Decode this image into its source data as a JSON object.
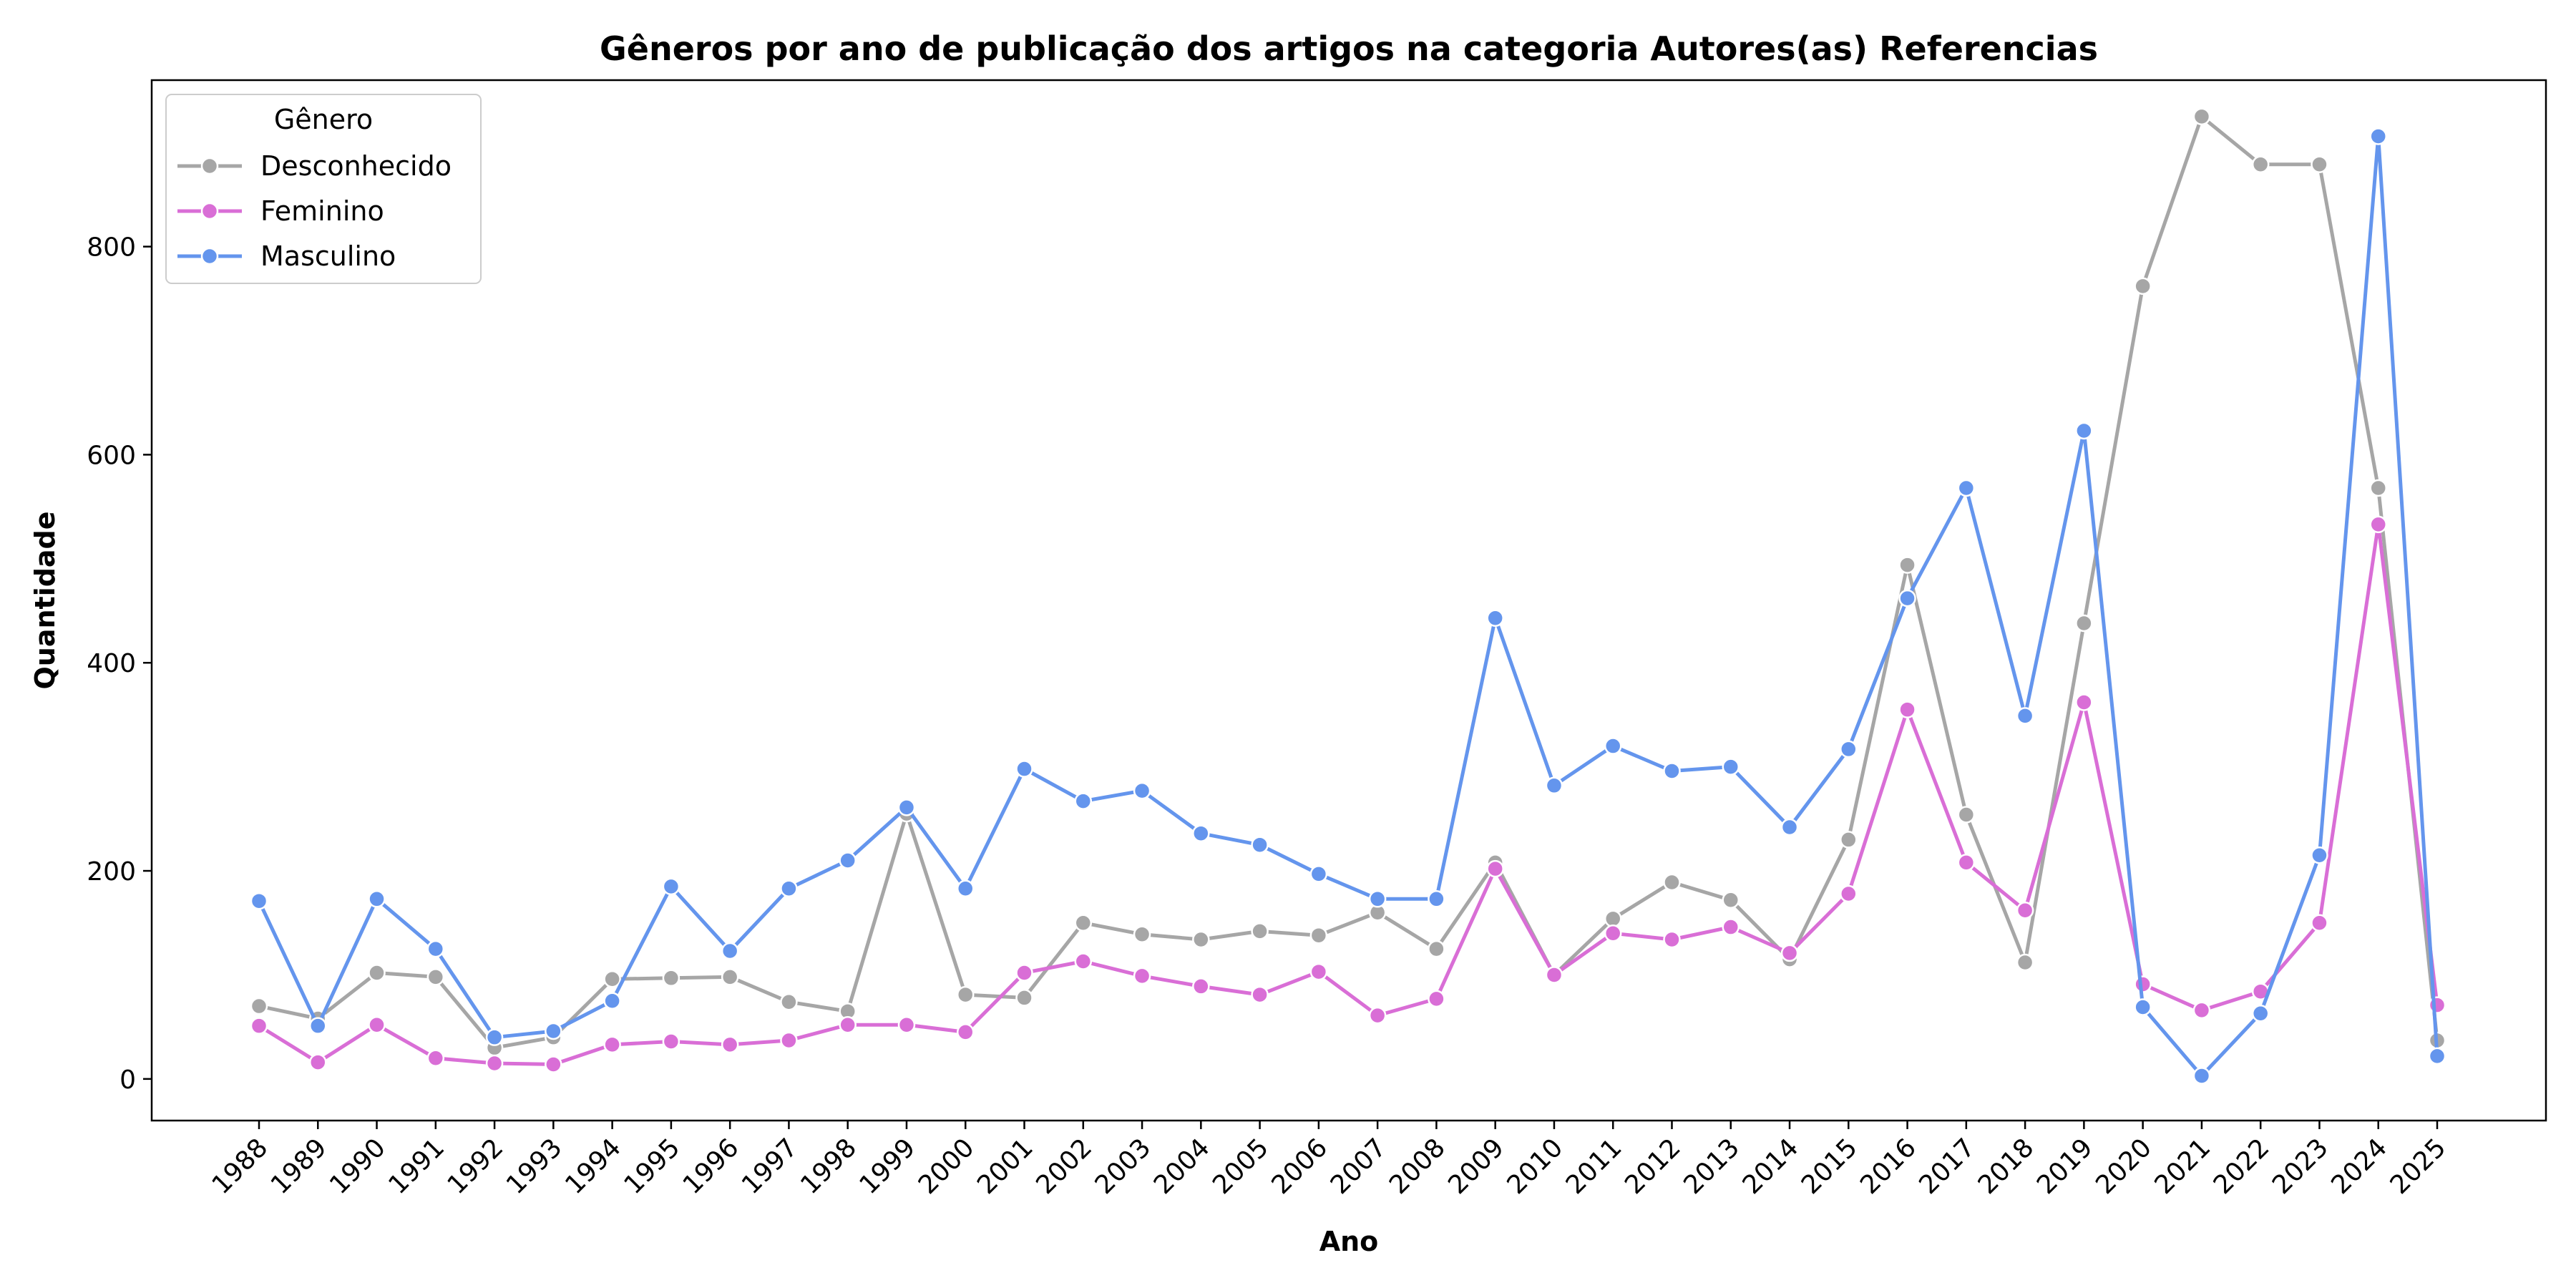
{
  "chart_data": {
    "type": "line",
    "title": "Gêneros por ano de publicação dos artigos na categoria Autores(as) Referencias",
    "xlabel": "Ano",
    "ylabel": "Quantidade",
    "ylim": [
      -40,
      960
    ],
    "yticks": [
      0,
      200,
      400,
      600,
      800
    ],
    "grid": false,
    "legend": {
      "title": "Gênero",
      "placement": "top-left"
    },
    "x": [
      "1988",
      "1989",
      "1990",
      "1991",
      "1992",
      "1993",
      "1994",
      "1995",
      "1996",
      "1997",
      "1998",
      "1999",
      "2000",
      "2001",
      "2002",
      "2003",
      "2004",
      "2005",
      "2006",
      "2007",
      "2008",
      "2009",
      "2010",
      "2011",
      "2012",
      "2013",
      "2014",
      "2015",
      "2016",
      "2017",
      "2018",
      "2019",
      "2020",
      "2021",
      "2022",
      "2023",
      "2024",
      "2025"
    ],
    "series": [
      {
        "name": "Desconhecido",
        "color": "#a6a6a6",
        "values": [
          70,
          58,
          102,
          98,
          30,
          40,
          96,
          97,
          98,
          74,
          65,
          255,
          81,
          78,
          150,
          139,
          134,
          142,
          138,
          160,
          125,
          208,
          100,
          154,
          189,
          172,
          115,
          230,
          494,
          254,
          112,
          438,
          762,
          925,
          879,
          879,
          568,
          37
        ]
      },
      {
        "name": "Feminino",
        "color": "#d96ed6",
        "values": [
          51,
          16,
          52,
          20,
          15,
          14,
          33,
          36,
          33,
          37,
          52,
          52,
          45,
          102,
          113,
          99,
          89,
          81,
          103,
          61,
          77,
          202,
          100,
          140,
          134,
          146,
          121,
          178,
          355,
          208,
          162,
          362,
          91,
          66,
          84,
          150,
          533,
          71
        ]
      },
      {
        "name": "Masculino",
        "color": "#6495ed",
        "values": [
          171,
          51,
          173,
          125,
          40,
          46,
          75,
          185,
          123,
          183,
          210,
          261,
          183,
          298,
          267,
          277,
          236,
          225,
          197,
          173,
          173,
          443,
          282,
          320,
          296,
          300,
          242,
          317,
          462,
          568,
          349,
          623,
          69,
          3,
          63,
          215,
          906,
          22
        ]
      }
    ]
  }
}
